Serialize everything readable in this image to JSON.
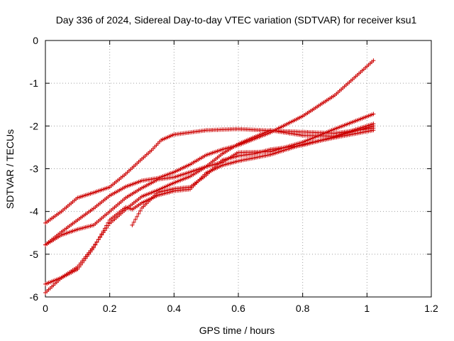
{
  "chart_data": {
    "type": "scatter",
    "title": "Day 336 of 2024, Sidereal Day-to-day VTEC variation (SDTVAR) for receiver ksu1",
    "xlabel": "GPS time / hours",
    "ylabel": "SDTVAR / TECUs",
    "xlim": [
      0,
      1.2
    ],
    "ylim": [
      -6,
      0
    ],
    "xticks": [
      0,
      0.2,
      0.4,
      0.6,
      0.8,
      1,
      1.2
    ],
    "xtick_labels": [
      "0",
      "0.2",
      "0.4",
      "0.6",
      "0.8",
      "1",
      "1.2"
    ],
    "yticks": [
      -6,
      -5,
      -4,
      -3,
      -2,
      -1,
      0
    ],
    "ytick_labels": [
      "-6",
      "-5",
      "-4",
      "-3",
      "-2",
      "-1",
      "0"
    ],
    "grid": true,
    "marker": "plus",
    "color": "#cc0000",
    "series": [
      {
        "x": [
          0,
          0.05,
          0.1,
          0.15,
          0.2,
          0.25,
          0.3,
          0.33,
          0.36,
          0.4,
          0.5,
          0.6,
          0.7,
          0.8,
          0.9,
          1.02
        ],
        "y": [
          -4.27,
          -4.0,
          -3.68,
          -3.56,
          -3.43,
          -3.12,
          -2.77,
          -2.57,
          -2.33,
          -2.2,
          -2.1,
          -2.07,
          -2.11,
          -2.14,
          -2.17,
          -2.05
        ]
      },
      {
        "x": [
          0,
          0.05,
          0.1,
          0.15,
          0.2,
          0.25,
          0.3,
          0.35,
          0.4,
          0.45,
          0.5,
          0.55,
          0.6,
          0.7,
          0.8,
          0.9,
          1.02
        ],
        "y": [
          -4.78,
          -4.48,
          -4.2,
          -3.93,
          -3.63,
          -3.42,
          -3.28,
          -3.22,
          -3.08,
          -2.9,
          -2.68,
          -2.55,
          -2.45,
          -2.15,
          -1.77,
          -1.28,
          -0.47
        ]
      },
      {
        "x": [
          0,
          0.05,
          0.1,
          0.15,
          0.2,
          0.25,
          0.3,
          0.35,
          0.4,
          0.45,
          0.5,
          0.55,
          0.6,
          0.7,
          0.8,
          0.9,
          1.02
        ],
        "y": [
          -4.78,
          -4.55,
          -4.42,
          -4.32,
          -4.0,
          -3.68,
          -3.45,
          -3.25,
          -3.2,
          -3.08,
          -2.95,
          -2.85,
          -2.62,
          -2.6,
          -2.38,
          -2.07,
          -1.72
        ]
      },
      {
        "x": [
          0,
          0.05,
          0.1,
          0.15,
          0.2,
          0.25,
          0.3,
          0.35,
          0.4,
          0.45,
          0.5,
          0.55,
          0.6,
          0.7,
          0.8,
          0.9,
          1.02
        ],
        "y": [
          -5.7,
          -5.55,
          -5.3,
          -4.82,
          -4.28,
          -3.95,
          -3.65,
          -3.5,
          -3.33,
          -3.18,
          -2.95,
          -2.65,
          -2.42,
          -2.1,
          -2.22,
          -2.24,
          -1.95
        ]
      },
      {
        "x": [
          0,
          0.05,
          0.1,
          0.15,
          0.2,
          0.25,
          0.27,
          0.3,
          0.35,
          0.4,
          0.45,
          0.5,
          0.55,
          0.6,
          0.7,
          0.8,
          0.9,
          1.02
        ],
        "y": [
          -5.9,
          -5.55,
          -5.35,
          -4.85,
          -4.2,
          -3.9,
          -3.95,
          -3.8,
          -3.62,
          -3.52,
          -3.48,
          -3.1,
          -2.92,
          -2.82,
          -2.67,
          -2.43,
          -2.27,
          -2.1
        ]
      },
      {
        "x": [
          0.27,
          0.3,
          0.35,
          0.4,
          0.45,
          0.5,
          0.55,
          0.6,
          0.65,
          0.7,
          0.8,
          0.9,
          1.02
        ],
        "y": [
          -4.32,
          -3.92,
          -3.55,
          -3.47,
          -3.43,
          -3.15,
          -2.8,
          -2.7,
          -2.65,
          -2.55,
          -2.45,
          -2.25,
          -2.0
        ]
      }
    ]
  }
}
